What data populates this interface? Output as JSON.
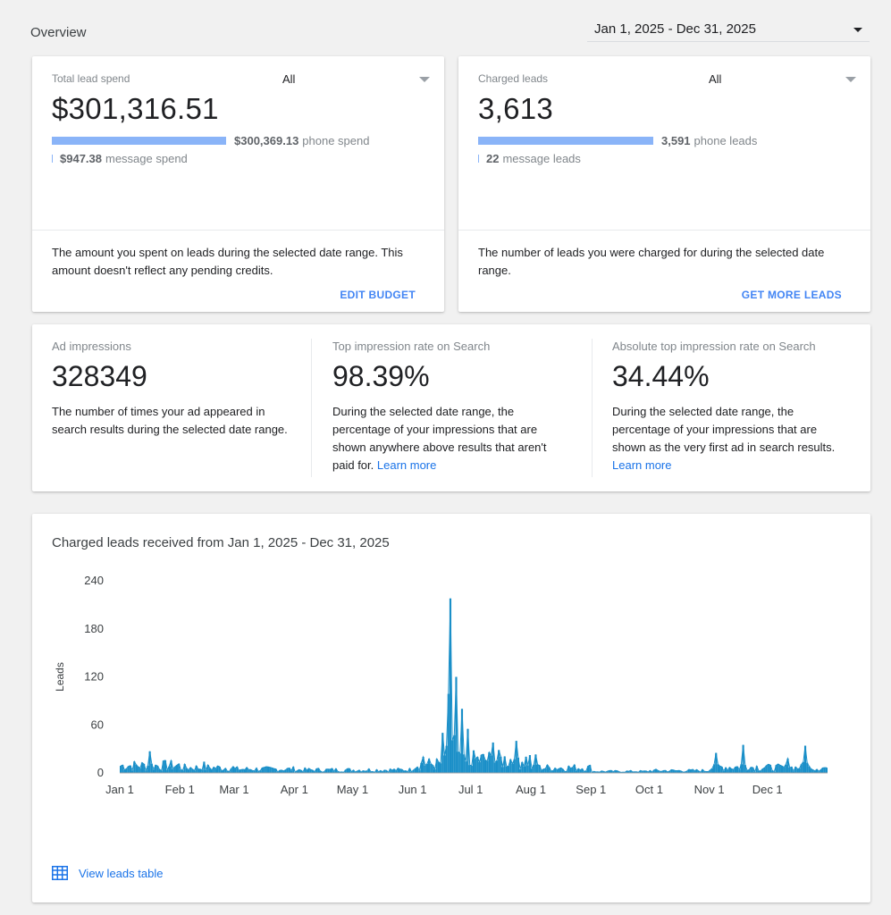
{
  "header": {
    "title": "Overview",
    "date_range": "Jan 1, 2025 - Dec 31, 2025"
  },
  "spend_card": {
    "label": "Total lead spend",
    "filter": "All",
    "total": "$301,316.51",
    "phone_amount": "$300,369.13",
    "phone_label": "phone spend",
    "message_amount": "$947.38",
    "message_label": "message spend",
    "phone_share": 0.997,
    "description": "The amount you spent on leads during the selected date range. This amount doesn't reflect any pending credits.",
    "action": "EDIT BUDGET"
  },
  "leads_card": {
    "label": "Charged leads",
    "filter": "All",
    "total": "3,613",
    "phone_amount": "3,591",
    "phone_label": "phone leads",
    "message_amount": "22",
    "message_label": "message leads",
    "phone_share": 0.994,
    "description": "The number of leads you were charged for during the selected date range.",
    "action": "GET MORE LEADS"
  },
  "metrics": [
    {
      "label": "Ad impressions",
      "value": "328349",
      "description": "The number of times your ad appeared in search results during the selected date range.",
      "link": ""
    },
    {
      "label": "Top impression rate on Search",
      "value": "98.39%",
      "description": "During the selected date range, the percentage of your impressions that are shown anywhere above results that aren't paid for.",
      "link": "Learn more"
    },
    {
      "label": "Absolute top impression rate on Search",
      "value": "34.44%",
      "description": "During the selected date range, the percentage of your impressions that are shown as the very first ad in search results.",
      "link": "Learn more"
    }
  ],
  "chart_section": {
    "title": "Charged leads received from Jan 1, 2025 - Dec 31, 2025",
    "link": "View leads table"
  },
  "chart_data": {
    "type": "area",
    "title": "Charged leads received from Jan 1, 2025 - Dec 31, 2025",
    "xlabel": "",
    "ylabel": "Leads",
    "ylim": [
      0,
      240
    ],
    "yticks": [
      0,
      60,
      120,
      180,
      240
    ],
    "xticks": [
      "Jan 1",
      "Feb 1",
      "Mar 1",
      "Apr 1",
      "May 1",
      "Jun 1",
      "Jul 1",
      "Aug 1",
      "Sep 1",
      "Oct 1",
      "Nov 1",
      "Dec 1"
    ],
    "color": "#1a8fc8",
    "x_start": "2025-01-01",
    "x_end": "2025-12-31",
    "monthly_level": [
      10,
      7,
      5,
      4,
      4,
      12,
      18,
      7,
      2,
      3,
      8,
      7
    ],
    "peaks": [
      {
        "date": "2025-01-16",
        "value": 27
      },
      {
        "date": "2025-02-13",
        "value": 14
      },
      {
        "date": "2025-06-06",
        "value": 20
      },
      {
        "date": "2025-06-16",
        "value": 50
      },
      {
        "date": "2025-06-20",
        "value": 218
      },
      {
        "date": "2025-06-23",
        "value": 120
      },
      {
        "date": "2025-06-26",
        "value": 80
      },
      {
        "date": "2025-06-29",
        "value": 55
      },
      {
        "date": "2025-07-12",
        "value": 38
      },
      {
        "date": "2025-07-24",
        "value": 40
      },
      {
        "date": "2025-08-03",
        "value": 23
      },
      {
        "date": "2025-11-04",
        "value": 25
      },
      {
        "date": "2025-11-18",
        "value": 35
      },
      {
        "date": "2025-12-11",
        "value": 18
      },
      {
        "date": "2025-12-20",
        "value": 34
      }
    ]
  }
}
